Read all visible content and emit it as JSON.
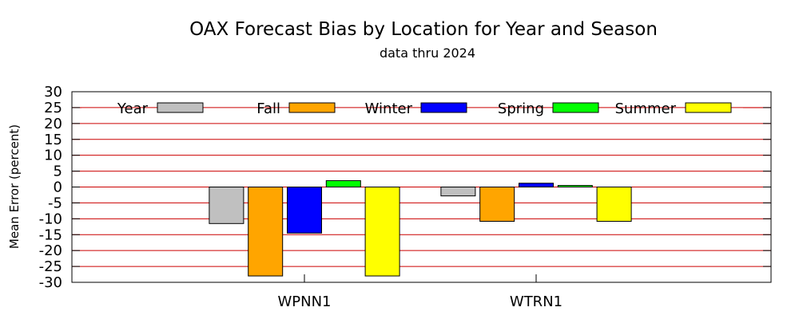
{
  "chart_data": {
    "type": "bar",
    "title": "OAX Forecast Bias by Location for Year and Season",
    "subtitle": "data thru 2024",
    "xlabel": "",
    "ylabel": "Mean Error (percent)",
    "ylim": [
      -30,
      30
    ],
    "yticks": [
      30,
      25,
      20,
      15,
      10,
      5,
      0,
      -5,
      -10,
      -15,
      -20,
      -25,
      -30
    ],
    "ytick_labels": [
      "30",
      "25",
      "20",
      "15",
      "10",
      "5",
      "0",
      "-5",
      "-10",
      "-15",
      "-20",
      "-25",
      "-30"
    ],
    "grid": "horizontal",
    "grid_color": "#cc0000",
    "legend_position": "top",
    "categories": [
      "WPNN1",
      "WTRN1"
    ],
    "series": [
      {
        "name": "Year",
        "color": "#c0c0c0",
        "values": [
          -11.5,
          -2.8
        ]
      },
      {
        "name": "Fall",
        "color": "#ffa500",
        "values": [
          -28.0,
          -10.8
        ]
      },
      {
        "name": "Winter",
        "color": "#0000ff",
        "values": [
          -14.5,
          1.2
        ]
      },
      {
        "name": "Spring",
        "color": "#00ff00",
        "values": [
          2.0,
          0.5
        ]
      },
      {
        "name": "Summer",
        "color": "#ffff00",
        "values": [
          -28.0,
          -10.8
        ]
      }
    ]
  }
}
